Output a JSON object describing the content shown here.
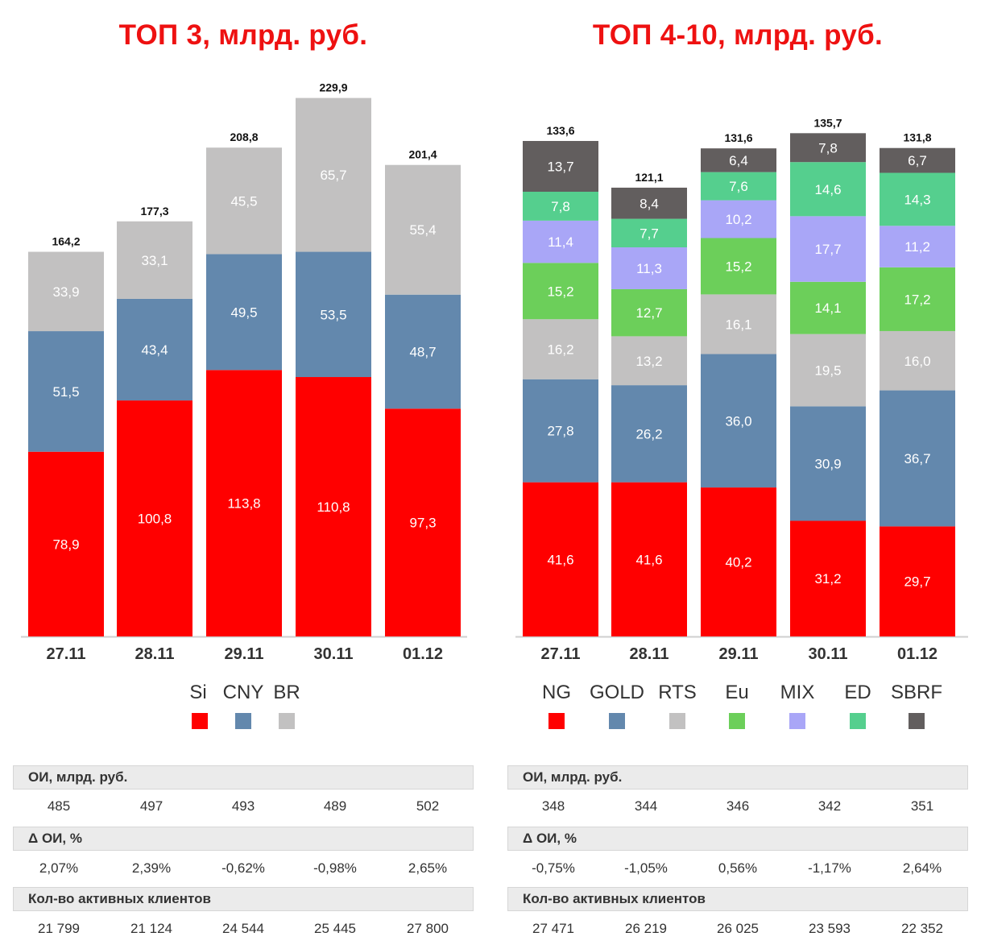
{
  "chart_data": [
    {
      "type": "bar",
      "stacked": true,
      "title": "ТОП 3, млрд. руб.",
      "categories": [
        "27.11",
        "28.11",
        "29.11",
        "30.11",
        "01.12"
      ],
      "series": [
        {
          "name": "Si",
          "color": "#ff0000",
          "values": [
            78.9,
            100.8,
            113.8,
            110.8,
            97.3
          ],
          "labels": [
            "78,9",
            "100,8",
            "113,8",
            "110,8",
            "97,3"
          ]
        },
        {
          "name": "CNY",
          "color": "#6388ad",
          "values": [
            51.5,
            43.4,
            49.5,
            53.5,
            48.7
          ],
          "labels": [
            "51,5",
            "43,4",
            "49,5",
            "53,5",
            "48,7"
          ]
        },
        {
          "name": "BR",
          "color": "#c2c1c1",
          "values": [
            33.9,
            33.1,
            45.5,
            65.7,
            55.4
          ],
          "labels": [
            "33,9",
            "33,1",
            "45,5",
            "65,7",
            "55,4"
          ]
        }
      ],
      "totals": [
        164.2,
        177.3,
        208.8,
        229.9,
        201.4
      ],
      "total_labels": [
        "164,2",
        "177,3",
        "208,8",
        "229,9",
        "201,4"
      ],
      "legend_position": "bottom"
    },
    {
      "type": "bar",
      "stacked": true,
      "title": "ТОП 4-10, млрд. руб.",
      "categories": [
        "27.11",
        "28.11",
        "29.11",
        "30.11",
        "01.12"
      ],
      "series": [
        {
          "name": "NG",
          "color": "#ff0000",
          "values": [
            41.6,
            41.6,
            40.2,
            31.2,
            29.7
          ],
          "labels": [
            "41,6",
            "41,6",
            "40,2",
            "31,2",
            "29,7"
          ]
        },
        {
          "name": "GOLD",
          "color": "#6388ad",
          "values": [
            27.8,
            26.2,
            36.0,
            30.9,
            36.7
          ],
          "labels": [
            "27,8",
            "26,2",
            "36,0",
            "30,9",
            "36,7"
          ]
        },
        {
          "name": "RTS",
          "color": "#c2c1c1",
          "values": [
            16.2,
            13.2,
            16.1,
            19.5,
            16.0
          ],
          "labels": [
            "16,2",
            "13,2",
            "16,1",
            "19,5",
            "16,0"
          ]
        },
        {
          "name": "Eu",
          "color": "#6ccf5a",
          "values": [
            15.2,
            12.7,
            15.2,
            14.1,
            17.2
          ],
          "labels": [
            "15,2",
            "12,7",
            "15,2",
            "14,1",
            "17,2"
          ]
        },
        {
          "name": "MIX",
          "color": "#a9a6f7",
          "values": [
            11.4,
            11.3,
            10.2,
            17.7,
            11.2
          ],
          "labels": [
            "11,4",
            "11,3",
            "10,2",
            "17,7",
            "11,2"
          ]
        },
        {
          "name": "ED",
          "color": "#55cf8e",
          "values": [
            7.8,
            7.7,
            7.6,
            14.6,
            14.3
          ],
          "labels": [
            "7,8",
            "7,7",
            "7,6",
            "14,6",
            "14,3"
          ]
        },
        {
          "name": "SBRF",
          "color": "#625e5e",
          "values": [
            13.7,
            8.4,
            6.4,
            7.8,
            6.7
          ],
          "labels": [
            "13,7",
            "8,4",
            "6,4",
            "7,8",
            "6,7"
          ]
        }
      ],
      "totals": [
        133.6,
        121.1,
        131.6,
        135.7,
        131.8
      ],
      "total_labels": [
        "133,6",
        "121,1",
        "131,6",
        "135,7",
        "131,8"
      ],
      "legend_position": "bottom"
    }
  ],
  "tables": {
    "left": {
      "oi_header": "ОИ, млрд. руб.",
      "oi": [
        "485",
        "497",
        "493",
        "489",
        "502"
      ],
      "doi_header": "Δ ОИ, %",
      "doi": [
        "2,07%",
        "2,39%",
        "-0,62%",
        "-0,98%",
        "2,65%"
      ],
      "clients_header": "Кол-во активных клиентов",
      "clients": [
        "21 799",
        "21 124",
        "24 544",
        "25 445",
        "27 800"
      ]
    },
    "right": {
      "oi_header": "ОИ, млрд. руб.",
      "oi": [
        "348",
        "344",
        "346",
        "342",
        "351"
      ],
      "doi_header": "Δ ОИ, %",
      "doi": [
        "-0,75%",
        "-1,05%",
        "0,56%",
        "-1,17%",
        "2,64%"
      ],
      "clients_header": "Кол-во активных клиентов",
      "clients": [
        "27 471",
        "26 219",
        "26 025",
        "23 593",
        "22 352"
      ]
    }
  }
}
